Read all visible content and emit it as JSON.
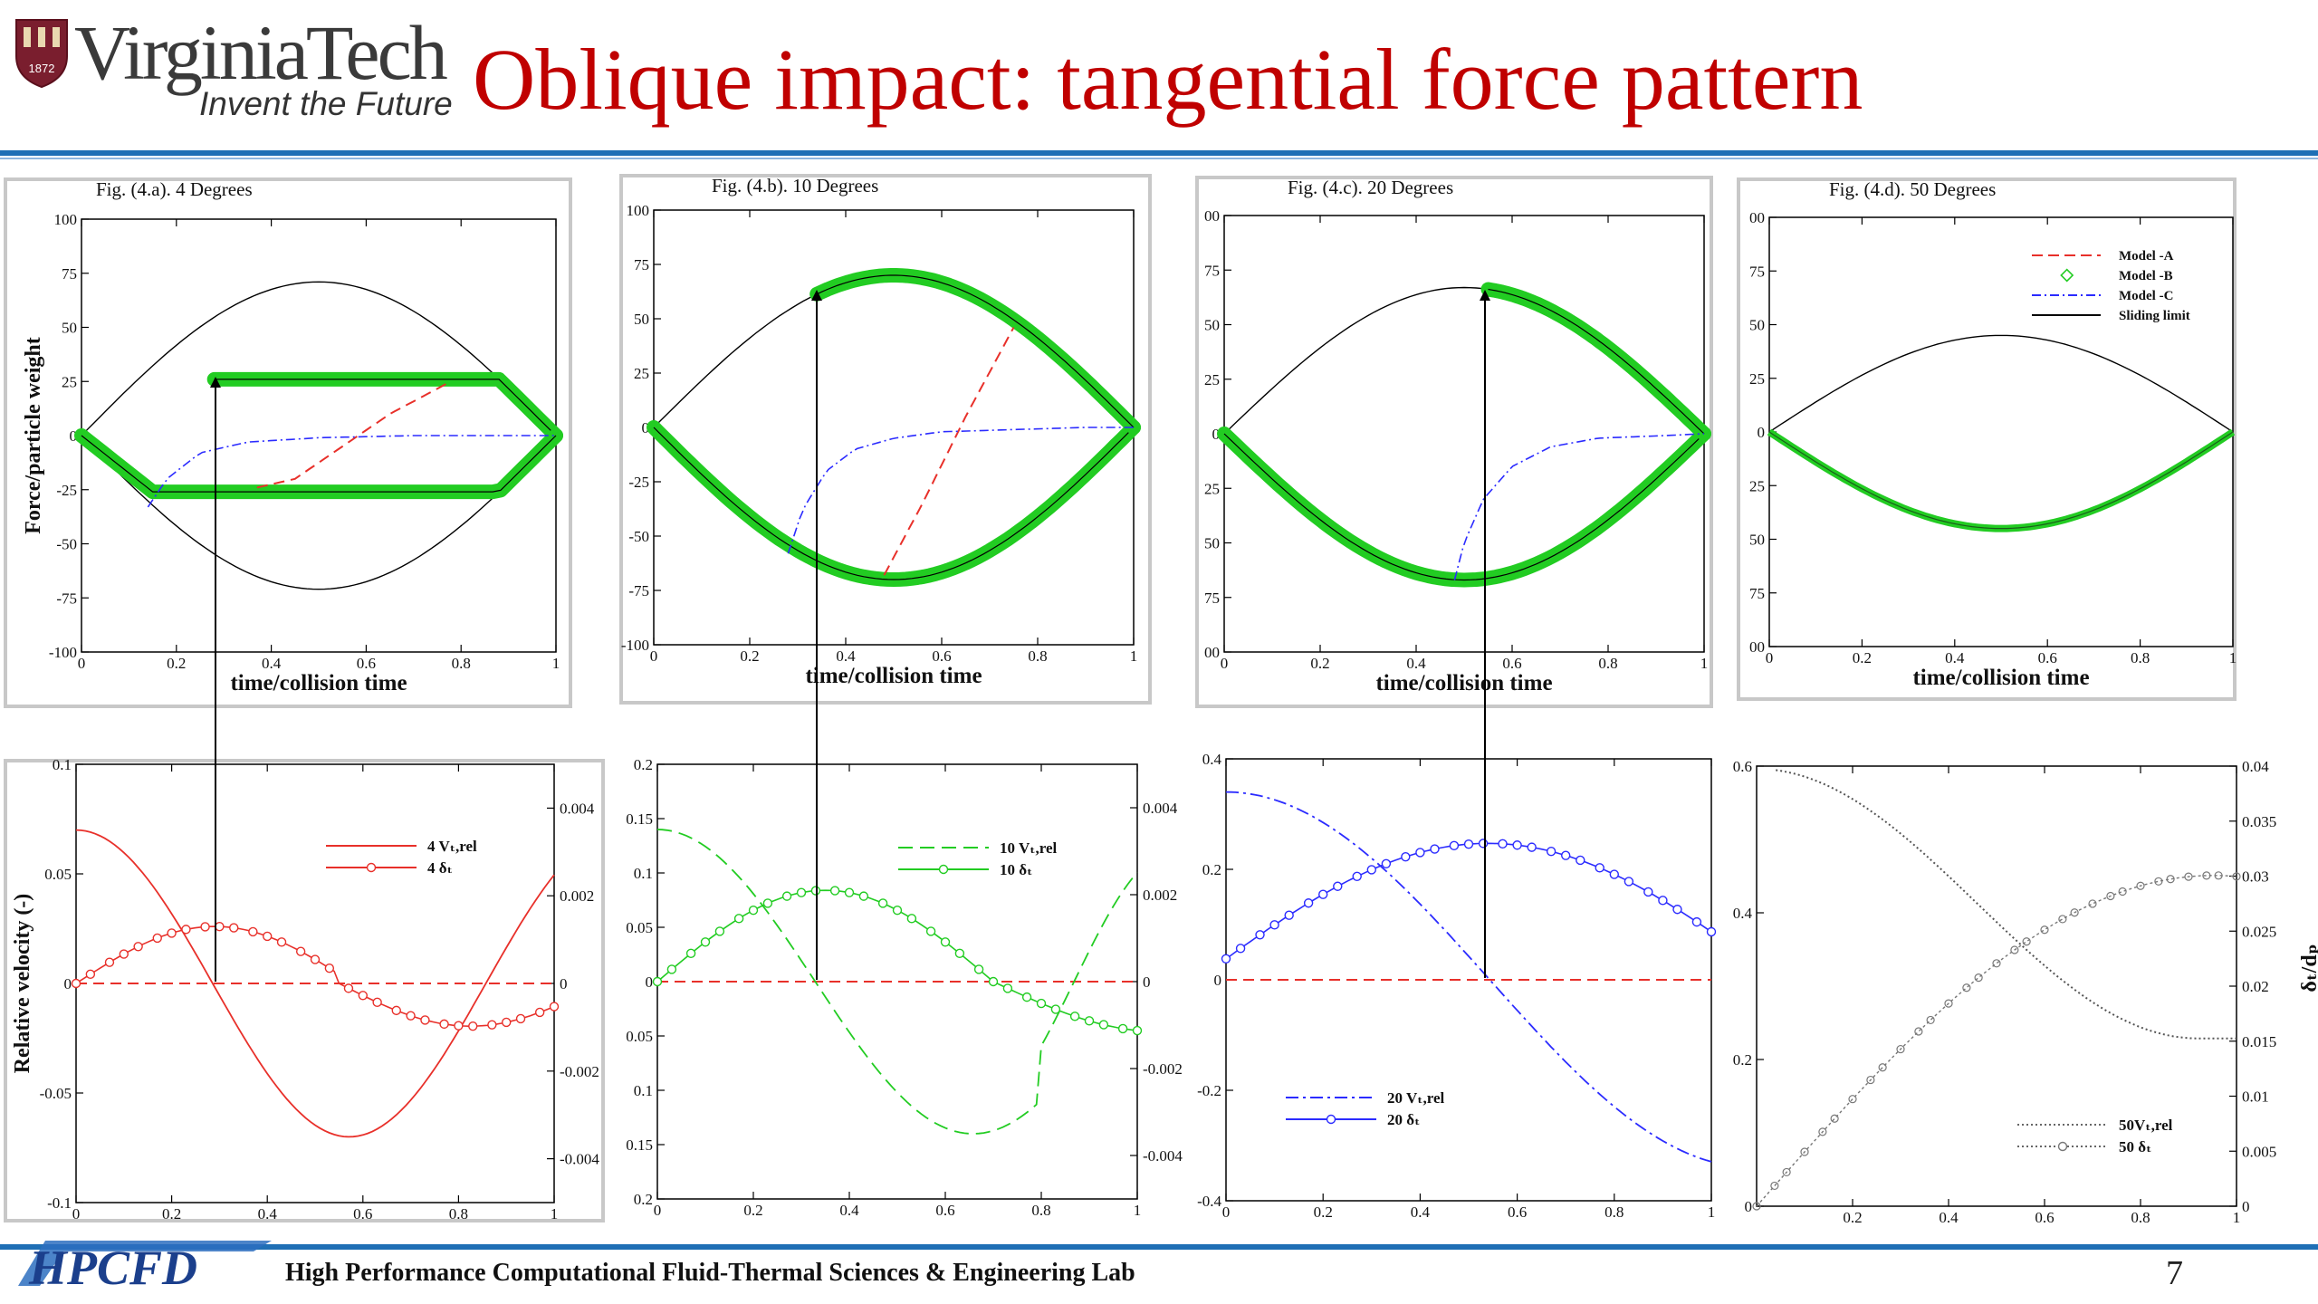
{
  "header": {
    "logo_name": "VirginiaTech",
    "logo_tagline": "Invent the Future",
    "seal_year": "1872",
    "title": "Oblique impact: tangential force pattern"
  },
  "footer": {
    "lab_name": "High Performance Computational Fluid-Thermal Sciences & Engineering Lab",
    "lab_logo": "HPCFD",
    "page_number": "7"
  },
  "colors": {
    "title": "#c00000",
    "rule": "#1f6fb5",
    "model_a": "#e8302a",
    "model_b": "#22cc22",
    "model_c": "#2b2bff",
    "sliding_limit": "#000000",
    "panel_border": "#c8c8c8"
  },
  "chart_data": [
    {
      "id": "4a",
      "type": "line",
      "title": "Fig. (4.a). 4 Degrees",
      "xlabel": "time/collision time",
      "ylabel": "Force/particle weight",
      "xlim": [
        0,
        1
      ],
      "ylim": [
        -100,
        100
      ],
      "xticks": [
        "0",
        "0.2",
        "0.4",
        "0.6",
        "0.8",
        "1"
      ],
      "yticks": [
        "100",
        "75",
        "50",
        "25",
        "0",
        "-25",
        "-50",
        "-75",
        "-100"
      ],
      "curves": {
        "sliding_limit_amp": 71,
        "model_b_bands": [
          {
            "x": [
              0,
              0.28,
              0.88,
              1
            ],
            "y": [
              0,
              26,
              26,
              0
            ],
            "from": 0.28
          },
          {
            "x": [
              0,
              0.15,
              0.88,
              1
            ],
            "y": [
              0,
              -26,
              -26,
              0
            ]
          }
        ],
        "model_a": {
          "x": [
            0.37,
            0.45,
            0.55,
            0.65,
            0.77
          ],
          "y": [
            -24,
            -20,
            -5,
            10,
            24
          ]
        },
        "model_c": {
          "x": [
            0.14,
            0.18,
            0.25,
            0.35,
            0.5,
            0.7,
            0.9,
            1
          ],
          "y": [
            -33,
            -20,
            -8,
            -3,
            -1,
            0,
            0,
            0
          ]
        },
        "arrow": {
          "x": 0.28,
          "y0": -100,
          "y1": 26
        }
      }
    },
    {
      "id": "4b",
      "type": "line",
      "title": "Fig. (4.b). 10 Degrees",
      "xlabel": "time/collision time",
      "ylabel": "",
      "xlim": [
        0,
        1
      ],
      "ylim": [
        -100,
        100
      ],
      "xticks": [
        "0",
        "0.2",
        "0.4",
        "0.6",
        "0.8",
        "1"
      ],
      "yticks": [
        "100",
        "75",
        "50",
        "25",
        "0",
        "-25",
        "-50",
        "-75",
        "-100"
      ],
      "curves": {
        "sliding_limit_amp": 70,
        "model_b_split": 0.34,
        "model_a": {
          "x": [
            0.48,
            0.56,
            0.65,
            0.75
          ],
          "y": [
            -68,
            -35,
            5,
            46
          ]
        },
        "model_c": {
          "x": [
            0.28,
            0.31,
            0.36,
            0.42,
            0.5,
            0.6,
            0.75,
            0.9,
            1
          ],
          "y": [
            -58,
            -38,
            -20,
            -10,
            -5,
            -2,
            -1,
            0,
            0
          ]
        },
        "arrow": {
          "x": 0.34,
          "y0": -100,
          "y1": 62
        }
      }
    },
    {
      "id": "4c",
      "type": "line",
      "title": "Fig. (4.c). 20 Degrees",
      "xlabel": "time/collision time",
      "ylabel": "",
      "xlim": [
        0,
        1
      ],
      "ylim": [
        -100,
        100
      ],
      "xticks": [
        "0",
        "0.2",
        "0.4",
        "0.6",
        "0.8",
        "1"
      ],
      "yticks": [
        "00",
        "75",
        "50",
        "25",
        "0",
        "25",
        "50",
        "75",
        "00"
      ],
      "curves": {
        "sliding_limit_amp": 67,
        "model_b_split": 0.55,
        "model_c": {
          "x": [
            0.48,
            0.5,
            0.54,
            0.6,
            0.68,
            0.78,
            0.9,
            1
          ],
          "y": [
            -67,
            -50,
            -30,
            -15,
            -6,
            -2,
            -1,
            0
          ]
        },
        "arrow": {
          "x": 0.55,
          "y0": -100,
          "y1": 66
        }
      }
    },
    {
      "id": "4d",
      "type": "line",
      "title": "Fig. (4.d). 50 Degrees",
      "xlabel": "time/collision time",
      "ylabel": "",
      "xlim": [
        0,
        1
      ],
      "ylim": [
        -100,
        100
      ],
      "xticks": [
        "0",
        "0.2",
        "0.4",
        "0.6",
        "0.8",
        "1"
      ],
      "yticks": [
        "00",
        "75",
        "50",
        "25",
        "0",
        "25",
        "50",
        "75",
        "00"
      ],
      "legend": [
        "Model -A",
        "Model -B",
        "Model -C",
        "Sliding limit"
      ],
      "curves": {
        "sliding_limit_amp": 45,
        "model_b_amp": 45
      }
    },
    {
      "id": "5a",
      "type": "line",
      "ylabel": "Relative velocity (-)",
      "xlim": [
        0,
        1
      ],
      "ylim": [
        -0.1,
        0.1
      ],
      "y2lim": [
        -0.005,
        0.005
      ],
      "xticks": [
        "0",
        "0.2",
        "0.4",
        "0.6",
        "0.8",
        "1"
      ],
      "yticks": [
        "0.1",
        "0.05",
        "0",
        "-0.05",
        "-0.1"
      ],
      "y2ticks": [
        "0.004",
        "0.002",
        "0",
        "-0.002",
        "-0.004"
      ],
      "legend": [
        "4 Vₜ,rel",
        "4 δₜ"
      ],
      "velocity": {
        "amp": 0.07,
        "freq": 3.4
      },
      "displacement": {
        "amp": 0.0013,
        "peak_x": 0.3
      },
      "arrow": {
        "x": 0.28,
        "y_from": 0
      }
    },
    {
      "id": "5b",
      "type": "line",
      "xlim": [
        0,
        1
      ],
      "ylim": [
        -0.25,
        0.25
      ],
      "y2lim": [
        -0.005,
        0.005
      ],
      "xticks": [
        "0",
        "0.2",
        "0.4",
        "0.6",
        "0.8",
        "1"
      ],
      "yticks": [
        "0.2",
        "0.15",
        "0.1",
        "0.05",
        "0",
        "0.05",
        "0.1",
        "0.15",
        "0.2"
      ],
      "y2ticks": [
        "0.004",
        "0.002",
        "0",
        "-0.002",
        "-0.004"
      ],
      "legend": [
        "10 Vₜ,rel",
        "10 δₜ"
      ],
      "velocity": {
        "amp": 0.175,
        "freq": 2.3
      },
      "displacement": {
        "amp": 0.0021,
        "peak_x": 0.35
      },
      "arrow": {
        "x": 0.34,
        "y_from": 0
      }
    },
    {
      "id": "5c",
      "type": "line",
      "xlim": [
        0,
        1
      ],
      "ylim": [
        -0.4,
        0.4
      ],
      "xticks": [
        "0",
        "0.2",
        "0.4",
        "0.6",
        "0.8",
        "1"
      ],
      "yticks": [
        "0.4",
        "0.2",
        "0",
        "-0.2",
        "-0.4"
      ],
      "legend": [
        "20 Vₜ,rel",
        "20 δₜ"
      ],
      "velocity": {
        "amp": 0.34
      },
      "displacement": {
        "amp": 0.26,
        "peak_x": 0.55
      },
      "arrow": {
        "x": 0.55,
        "y_from": 0
      }
    },
    {
      "id": "5d",
      "type": "line",
      "ylabel2": "δₜ/dₚ",
      "xlim": [
        0,
        1
      ],
      "ylim": [
        0,
        0.8
      ],
      "y2lim": [
        0,
        0.04
      ],
      "xticks": [
        "0.2",
        "0.4",
        "0.6",
        "0.8",
        "1"
      ],
      "yticks": [
        "0.6",
        "0.4",
        "0.2",
        "0"
      ],
      "y2ticks": [
        "0.04",
        "0.035",
        "0.03",
        "0.025",
        "0.02",
        "0.015",
        "0.01",
        "0.005",
        "0"
      ],
      "legend": [
        "50Vₜ,rel",
        "50 δₜ"
      ]
    }
  ]
}
